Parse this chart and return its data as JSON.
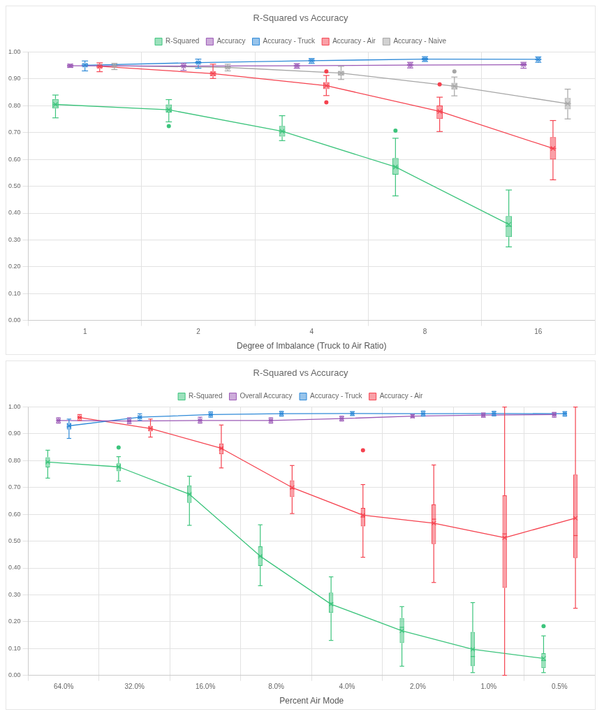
{
  "chart_data": [
    {
      "type": "box",
      "title": "R-Squared vs Accuracy",
      "xlabel": "Degree of Imbalance (Truck to Air Ratio)",
      "categories": [
        "1",
        "2",
        "4",
        "8",
        "16"
      ],
      "ylim": [
        0,
        1
      ],
      "yticks": [
        {
          "value": 0,
          "label": "0.00"
        },
        {
          "value": 0.1,
          "label": "0.10"
        },
        {
          "value": 0.2,
          "label": "0.20"
        },
        {
          "value": 0.3,
          "label": "0.30"
        },
        {
          "value": 0.4,
          "label": "0.40"
        },
        {
          "value": 0.5,
          "label": "0.50"
        },
        {
          "value": 0.6,
          "label": "0.60"
        },
        {
          "value": 0.7,
          "label": "0.70"
        },
        {
          "value": 0.8,
          "label": "0.80"
        },
        {
          "value": 0.9,
          "label": "0.90"
        },
        {
          "value": 1,
          "label": "1.00"
        }
      ],
      "grid": true,
      "legend": "top",
      "series": [
        {
          "name": "R-Squared",
          "color": "#3cc47c",
          "boxes": [
            {
              "low": 0.755,
              "q1": 0.79,
              "median": 0.805,
              "q3": 0.825,
              "high": 0.84,
              "mean": 0.805
            },
            {
              "low": 0.74,
              "q1": 0.775,
              "median": 0.785,
              "q3": 0.805,
              "high": 0.823,
              "mean": 0.785,
              "outliers": [
                0.724
              ]
            },
            {
              "low": 0.67,
              "q1": 0.685,
              "median": 0.705,
              "q3": 0.725,
              "high": 0.763,
              "mean": 0.705
            },
            {
              "low": 0.464,
              "q1": 0.543,
              "median": 0.572,
              "q3": 0.605,
              "high": 0.679,
              "mean": 0.572,
              "outliers": [
                0.707
              ]
            },
            {
              "low": 0.274,
              "q1": 0.311,
              "median": 0.351,
              "q3": 0.389,
              "high": 0.486,
              "mean": 0.358
            }
          ]
        },
        {
          "type": "line",
          "color": "#3cc47c",
          "values": [
            0.805,
            0.785,
            0.705,
            0.572,
            0.358
          ]
        },
        {
          "name": "Accuracy",
          "color": "#9b59b6",
          "boxes": [
            {
              "low": 0.943,
              "q1": 0.945,
              "median": 0.949,
              "q3": 0.953,
              "high": 0.955,
              "mean": 0.949
            },
            {
              "low": 0.932,
              "q1": 0.944,
              "median": 0.948,
              "q3": 0.953,
              "high": 0.958,
              "mean": 0.948
            },
            {
              "low": 0.94,
              "q1": 0.945,
              "median": 0.949,
              "q3": 0.952,
              "high": 0.957,
              "mean": 0.949
            },
            {
              "low": 0.941,
              "q1": 0.948,
              "median": 0.952,
              "q3": 0.956,
              "high": 0.962,
              "mean": 0.952
            },
            {
              "low": 0.94,
              "q1": 0.948,
              "median": 0.953,
              "q3": 0.957,
              "high": 0.962,
              "mean": 0.953
            }
          ]
        },
        {
          "type": "line",
          "color": "#9b59b6",
          "values": [
            0.949,
            0.948,
            0.949,
            0.952,
            0.953
          ]
        },
        {
          "name": "Accuracy - Truck",
          "color": "#2f8ad8",
          "boxes": [
            {
              "low": 0.93,
              "q1": 0.945,
              "median": 0.95,
              "q3": 0.958,
              "high": 0.967,
              "mean": 0.951
            },
            {
              "low": 0.94,
              "q1": 0.956,
              "median": 0.961,
              "q3": 0.965,
              "high": 0.974,
              "mean": 0.961
            },
            {
              "low": 0.958,
              "q1": 0.964,
              "median": 0.968,
              "q3": 0.972,
              "high": 0.976,
              "mean": 0.968
            },
            {
              "low": 0.965,
              "q1": 0.97,
              "median": 0.974,
              "q3": 0.978,
              "high": 0.983,
              "mean": 0.974
            },
            {
              "low": 0.962,
              "q1": 0.969,
              "median": 0.973,
              "q3": 0.977,
              "high": 0.982,
              "mean": 0.973
            }
          ]
        },
        {
          "type": "line",
          "color": "#2f8ad8",
          "values": [
            0.951,
            0.961,
            0.968,
            0.974,
            0.973
          ]
        },
        {
          "name": "Accuracy - Air",
          "color": "#f5424f",
          "boxes": [
            {
              "low": 0.927,
              "q1": 0.94,
              "median": 0.947,
              "q3": 0.953,
              "high": 0.96,
              "mean": 0.947
            },
            {
              "low": 0.902,
              "q1": 0.91,
              "median": 0.92,
              "q3": 0.928,
              "high": 0.955,
              "mean": 0.92
            },
            {
              "low": 0.838,
              "q1": 0.862,
              "median": 0.875,
              "q3": 0.888,
              "high": 0.913,
              "mean": 0.875,
              "outliers": [
                0.928,
                0.813
              ]
            },
            {
              "low": 0.704,
              "q1": 0.751,
              "median": 0.779,
              "q3": 0.801,
              "high": 0.832,
              "mean": 0.779,
              "outliers": [
                0.88
              ]
            },
            {
              "low": 0.524,
              "q1": 0.6,
              "median": 0.641,
              "q3": 0.683,
              "high": 0.745,
              "mean": 0.641
            }
          ]
        },
        {
          "type": "line",
          "color": "#f5424f",
          "values": [
            0.947,
            0.92,
            0.875,
            0.779,
            0.641
          ]
        },
        {
          "name": "Accuracy - Naive",
          "color": "#a6a6a6",
          "boxes": [
            {
              "low": 0.935,
              "q1": 0.945,
              "median": 0.949,
              "q3": 0.953,
              "high": 0.958,
              "mean": 0.949
            },
            {
              "low": 0.93,
              "q1": 0.938,
              "median": 0.943,
              "q3": 0.947,
              "high": 0.955,
              "mean": 0.943
            },
            {
              "low": 0.898,
              "q1": 0.913,
              "median": 0.922,
              "q3": 0.93,
              "high": 0.947,
              "mean": 0.922
            },
            {
              "low": 0.837,
              "q1": 0.86,
              "median": 0.873,
              "q3": 0.886,
              "high": 0.907,
              "mean": 0.873,
              "outliers": [
                0.928
              ]
            },
            {
              "low": 0.751,
              "q1": 0.787,
              "median": 0.808,
              "q3": 0.829,
              "high": 0.862,
              "mean": 0.808
            }
          ]
        },
        {
          "type": "line",
          "color": "#a6a6a6",
          "values": [
            0.949,
            0.943,
            0.922,
            0.873,
            0.808
          ]
        }
      ]
    },
    {
      "type": "box",
      "title": "R-Squared vs Accuracy",
      "xlabel": "Percent Air Mode",
      "categories": [
        "64.0%",
        "32.0%",
        "16.0%",
        "8.0%",
        "4.0%",
        "2.0%",
        "1.0%",
        "0.5%"
      ],
      "ylim": [
        0,
        1
      ],
      "yticks": [
        {
          "value": 0,
          "label": "0.00"
        },
        {
          "value": 0.1,
          "label": "0.10"
        },
        {
          "value": 0.2,
          "label": "0.20"
        },
        {
          "value": 0.3,
          "label": "0.30"
        },
        {
          "value": 0.4,
          "label": "0.40"
        },
        {
          "value": 0.5,
          "label": "0.50"
        },
        {
          "value": 0.6,
          "label": "0.60"
        },
        {
          "value": 0.7,
          "label": "0.70"
        },
        {
          "value": 0.8,
          "label": "0.80"
        },
        {
          "value": 0.9,
          "label": "0.90"
        },
        {
          "value": 1,
          "label": "1.00"
        }
      ],
      "grid": true,
      "legend": "top",
      "series": [
        {
          "name": "R-Squared",
          "color": "#3cc47c",
          "boxes": [
            {
              "low": 0.735,
              "q1": 0.775,
              "median": 0.794,
              "q3": 0.813,
              "high": 0.839,
              "mean": 0.795
            },
            {
              "low": 0.724,
              "q1": 0.761,
              "median": 0.777,
              "q3": 0.79,
              "high": 0.815,
              "mean": 0.777,
              "outliers": [
                0.849
              ]
            },
            {
              "low": 0.559,
              "q1": 0.643,
              "median": 0.676,
              "q3": 0.708,
              "high": 0.742,
              "mean": 0.675
            },
            {
              "low": 0.334,
              "q1": 0.408,
              "median": 0.444,
              "q3": 0.481,
              "high": 0.561,
              "mean": 0.444
            },
            {
              "low": 0.13,
              "q1": 0.233,
              "median": 0.269,
              "q3": 0.308,
              "high": 0.367,
              "mean": 0.265
            },
            {
              "low": 0.034,
              "q1": 0.12,
              "median": 0.179,
              "q3": 0.214,
              "high": 0.256,
              "mean": 0.166
            },
            {
              "low": 0.01,
              "q1": 0.034,
              "median": 0.07,
              "q3": 0.162,
              "high": 0.271,
              "mean": 0.097
            },
            {
              "low": 0.01,
              "q1": 0.027,
              "median": 0.055,
              "q3": 0.082,
              "high": 0.147,
              "mean": 0.063,
              "outliers": [
                0.183
              ]
            }
          ]
        },
        {
          "type": "line",
          "color": "#3cc47c",
          "values": [
            0.795,
            0.777,
            0.675,
            0.444,
            0.265,
            0.166,
            0.097,
            0.063
          ]
        },
        {
          "name": "Overall Accuracy",
          "color": "#9b59b6",
          "boxes": [
            {
              "low": 0.94,
              "q1": 0.946,
              "median": 0.95,
              "q3": 0.954,
              "high": 0.96,
              "mean": 0.95
            },
            {
              "low": 0.938,
              "q1": 0.944,
              "median": 0.948,
              "q3": 0.952,
              "high": 0.96,
              "mean": 0.948
            },
            {
              "low": 0.94,
              "q1": 0.946,
              "median": 0.95,
              "q3": 0.954,
              "high": 0.962,
              "mean": 0.95
            },
            {
              "low": 0.94,
              "q1": 0.946,
              "median": 0.95,
              "q3": 0.954,
              "high": 0.96,
              "mean": 0.95
            },
            {
              "low": 0.948,
              "q1": 0.953,
              "median": 0.957,
              "q3": 0.961,
              "high": 0.966,
              "mean": 0.957
            },
            {
              "low": 0.96,
              "q1": 0.963,
              "median": 0.966,
              "q3": 0.969,
              "high": 0.972,
              "mean": 0.966
            },
            {
              "low": 0.962,
              "q1": 0.966,
              "median": 0.97,
              "q3": 0.974,
              "high": 0.978,
              "mean": 0.97
            },
            {
              "low": 0.962,
              "q1": 0.968,
              "median": 0.972,
              "q3": 0.976,
              "high": 0.98,
              "mean": 0.972
            }
          ]
        },
        {
          "type": "line",
          "color": "#9b59b6",
          "values": [
            0.95,
            0.948,
            0.95,
            0.95,
            0.957,
            0.966,
            0.97,
            0.972
          ]
        },
        {
          "name": "Accuracy - Truck",
          "color": "#2f8ad8",
          "boxes": [
            {
              "low": 0.883,
              "q1": 0.916,
              "median": 0.928,
              "q3": 0.941,
              "high": 0.955,
              "mean": 0.93
            },
            {
              "low": 0.95,
              "q1": 0.957,
              "median": 0.962,
              "q3": 0.967,
              "high": 0.975,
              "mean": 0.962
            },
            {
              "low": 0.962,
              "q1": 0.968,
              "median": 0.972,
              "q3": 0.976,
              "high": 0.982,
              "mean": 0.972
            },
            {
              "low": 0.966,
              "q1": 0.971,
              "median": 0.975,
              "q3": 0.979,
              "high": 0.984,
              "mean": 0.975
            },
            {
              "low": 0.968,
              "q1": 0.972,
              "median": 0.976,
              "q3": 0.979,
              "high": 0.983,
              "mean": 0.976
            },
            {
              "low": 0.966,
              "q1": 0.971,
              "median": 0.975,
              "q3": 0.979,
              "high": 0.985,
              "mean": 0.975
            },
            {
              "low": 0.967,
              "q1": 0.972,
              "median": 0.976,
              "q3": 0.979,
              "high": 0.984,
              "mean": 0.976
            },
            {
              "low": 0.966,
              "q1": 0.971,
              "median": 0.975,
              "q3": 0.978,
              "high": 0.983,
              "mean": 0.975
            }
          ]
        },
        {
          "type": "line",
          "color": "#2f8ad8",
          "values": [
            0.93,
            0.962,
            0.972,
            0.975,
            0.976,
            0.975,
            0.976,
            0.975
          ]
        },
        {
          "name": "Accuracy - Air",
          "color": "#f5424f",
          "boxes": [
            {
              "low": 0.95,
              "q1": 0.956,
              "median": 0.961,
              "q3": 0.966,
              "high": 0.972,
              "mean": 0.961
            },
            {
              "low": 0.888,
              "q1": 0.909,
              "median": 0.92,
              "q3": 0.93,
              "high": 0.955,
              "mean": 0.92
            },
            {
              "low": 0.773,
              "q1": 0.824,
              "median": 0.846,
              "q3": 0.864,
              "high": 0.933,
              "mean": 0.846
            },
            {
              "low": 0.603,
              "q1": 0.664,
              "median": 0.696,
              "q3": 0.727,
              "high": 0.782,
              "mean": 0.7
            },
            {
              "low": 0.44,
              "q1": 0.555,
              "median": 0.59,
              "q3": 0.624,
              "high": 0.711,
              "mean": 0.597,
              "outliers": [
                0.839
              ]
            },
            {
              "low": 0.346,
              "q1": 0.489,
              "median": 0.582,
              "q3": 0.637,
              "high": 0.784,
              "mean": 0.567
            },
            {
              "low": 0,
              "q1": 0.326,
              "median": 0.527,
              "q3": 0.671,
              "high": 1,
              "mean": 0.513
            },
            {
              "low": 0.25,
              "q1": 0.437,
              "median": 0.521,
              "q3": 0.748,
              "high": 1,
              "mean": 0.586
            }
          ]
        },
        {
          "type": "line",
          "color": "#f5424f",
          "values": [
            0.961,
            0.92,
            0.846,
            0.7,
            0.597,
            0.567,
            0.513,
            0.586
          ]
        }
      ]
    }
  ]
}
